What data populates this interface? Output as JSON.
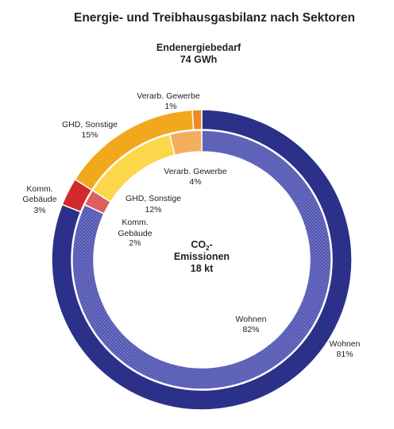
{
  "chart_data": {
    "type": "pie",
    "title": "Energie- und Treibhausgasbilanz nach Sektoren",
    "outer": {
      "title": "Endenergiebedarf",
      "total": "74 GWh",
      "slices": [
        {
          "label": "Wohnen",
          "pct_text": "81%",
          "value": 81,
          "color": "#2b3088"
        },
        {
          "label": "Komm. Gebäude",
          "pct_text": "3%",
          "value": 3,
          "color": "#d12a2a"
        },
        {
          "label": "GHD, Sonstige",
          "pct_text": "15%",
          "value": 15,
          "color": "#f2a81d"
        },
        {
          "label": "Verarb. Gewerbe",
          "pct_text": "1%",
          "value": 1,
          "color": "#ee8a26"
        }
      ]
    },
    "inner": {
      "title": "CO2-Emissionen",
      "title_main": "CO",
      "title_sub": "2",
      "title_rest": "-",
      "title_line2": "Emissionen",
      "total": "18 kt",
      "slices": [
        {
          "label": "Wohnen",
          "pct_text": "82%",
          "value": 82,
          "color": "#4a4fb0"
        },
        {
          "label": "Komm. Gebäude",
          "pct_text": "2%",
          "value": 2,
          "color": "#d84a4a"
        },
        {
          "label": "GHD, Sonstige",
          "pct_text": "12%",
          "value": 12,
          "color": "#fcd234"
        },
        {
          "label": "Verarb. Gewerbe",
          "pct_text": "4%",
          "value": 4,
          "color": "#f2a448"
        }
      ]
    }
  }
}
